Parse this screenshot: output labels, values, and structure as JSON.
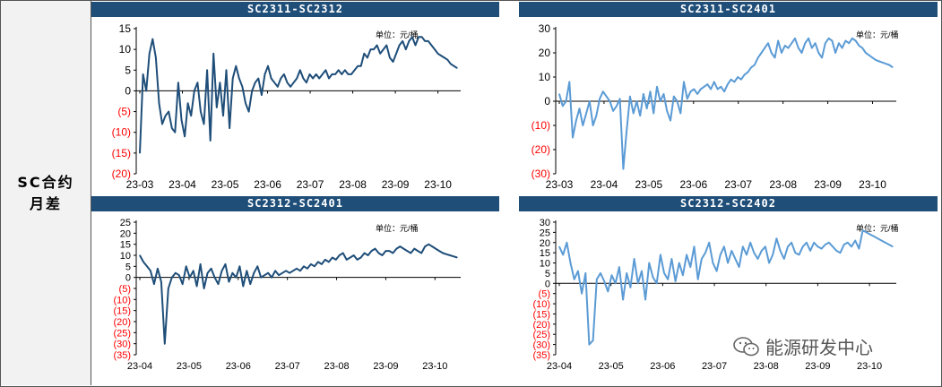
{
  "sidebar": {
    "line1": "SC合约",
    "line2": "月差"
  },
  "watermark": {
    "text": "能源研发中心",
    "icon": "wechat-icon"
  },
  "colors": {
    "header": "#1f4e79",
    "dark_series": "#1f4e79",
    "light_series": "#5b9bd5",
    "negative_tick": "#ff0000"
  },
  "chart_data": [
    {
      "type": "line",
      "title": "SC2311-SC2312",
      "unit_label": "单位：元/桶",
      "color": "#1f4e79",
      "x_ticks": [
        "23-03",
        "23-04",
        "23-05",
        "23-06",
        "23-07",
        "23-08",
        "23-09",
        "23-10"
      ],
      "y_ticks": [
        15,
        10,
        5,
        0,
        -5,
        -10,
        -15,
        -20
      ],
      "y_tick_labels": [
        "15",
        "10",
        "5",
        "0",
        "(5)",
        "(10)",
        "(15)",
        "(20)"
      ],
      "ylim": [
        -20,
        15
      ],
      "x_index": [
        0,
        1,
        2,
        3,
        4,
        5,
        6,
        7,
        8,
        9,
        10,
        11,
        12,
        13,
        14,
        15,
        16,
        17,
        18,
        19,
        20,
        21,
        22,
        23,
        24,
        25,
        26,
        27,
        28,
        29,
        30,
        31,
        32,
        33,
        34,
        35,
        36,
        37,
        38,
        39,
        40,
        41,
        42,
        43,
        44,
        45,
        46,
        47,
        48,
        49,
        50,
        51,
        52,
        53,
        54,
        55,
        56,
        57,
        58,
        59,
        60,
        61,
        62,
        63,
        64,
        65,
        66,
        67,
        68,
        69,
        70,
        71,
        72,
        73,
        74,
        75,
        76,
        77,
        78,
        79,
        80,
        81,
        82,
        83,
        84,
        85,
        86,
        87,
        88,
        89,
        90,
        91,
        92,
        93,
        94,
        95,
        96,
        97,
        98,
        99
      ],
      "values": [
        -15,
        4,
        0,
        9,
        12.5,
        8,
        -3,
        -8,
        -6,
        -5,
        -9,
        -10,
        2,
        -7,
        -11,
        -3,
        -6,
        0,
        2,
        -5,
        -8,
        5,
        -12,
        9,
        -4,
        2,
        -6,
        5,
        -9,
        3,
        6,
        3,
        1,
        -3,
        -5,
        0,
        2,
        3,
        -1,
        4,
        6,
        3,
        2,
        1,
        3,
        4,
        2,
        1,
        2,
        3,
        5,
        3,
        2,
        4,
        3,
        4,
        3,
        4,
        5,
        3,
        4,
        4,
        5,
        4,
        5,
        4,
        4,
        5,
        6,
        6,
        9,
        8,
        10,
        10,
        11,
        9,
        10,
        11,
        8,
        7,
        9,
        11,
        12,
        10,
        12,
        13,
        11,
        13,
        13,
        12,
        12,
        11,
        10,
        9,
        8.5,
        8,
        7.5,
        6.5,
        6,
        5.5
      ]
    },
    {
      "type": "line",
      "title": "SC2311-SC2401",
      "unit_label": "单位：元/桶",
      "color": "#5b9bd5",
      "x_ticks": [
        "23-03",
        "23-04",
        "23-05",
        "23-06",
        "23-07",
        "23-08",
        "23-09",
        "23-10"
      ],
      "y_ticks": [
        30,
        20,
        10,
        0,
        -10,
        -20,
        -30
      ],
      "y_tick_labels": [
        "30",
        "20",
        "10",
        "0",
        "(10)",
        "(20)",
        "(30)"
      ],
      "ylim": [
        -30,
        30
      ],
      "x_index": [
        0,
        1,
        2,
        3,
        4,
        5,
        6,
        7,
        8,
        9,
        10,
        11,
        12,
        13,
        14,
        15,
        16,
        17,
        18,
        19,
        20,
        21,
        22,
        23,
        24,
        25,
        26,
        27,
        28,
        29,
        30,
        31,
        32,
        33,
        34,
        35,
        36,
        37,
        38,
        39,
        40,
        41,
        42,
        43,
        44,
        45,
        46,
        47,
        48,
        49,
        50,
        51,
        52,
        53,
        54,
        55,
        56,
        57,
        58,
        59,
        60,
        61,
        62,
        63,
        64,
        65,
        66,
        67,
        68,
        69,
        70,
        71,
        72,
        73,
        74,
        75,
        76,
        77,
        78,
        79,
        80,
        81,
        82,
        83,
        84,
        85,
        86,
        87,
        88,
        89,
        90,
        91,
        92,
        93,
        94,
        95,
        96,
        97,
        98,
        99
      ],
      "values": [
        3,
        -2,
        0,
        8,
        -15,
        -8,
        -3,
        -10,
        -5,
        0,
        -10,
        -6,
        1,
        4,
        2,
        0,
        -4,
        -2,
        1,
        -28,
        -12,
        2,
        -5,
        0,
        -6,
        3,
        -3,
        4,
        -5,
        6,
        0,
        3,
        -4,
        -8,
        2,
        0,
        -5,
        8,
        1,
        4,
        5,
        3,
        5,
        6,
        7,
        5,
        8,
        5,
        6,
        4,
        7,
        9,
        8,
        10,
        9,
        11,
        12,
        14,
        15,
        18,
        20,
        22,
        24,
        20,
        18,
        25,
        20,
        23,
        22,
        24,
        26,
        22,
        20,
        24,
        26,
        22,
        24,
        20,
        18,
        24,
        26,
        25,
        20,
        24,
        22,
        25,
        24,
        26,
        25,
        23,
        22,
        20,
        19,
        18,
        17,
        16.5,
        16,
        15.5,
        15,
        14
      ]
    },
    {
      "type": "line",
      "title": "SC2312-SC2401",
      "unit_label": "单位：元/桶",
      "color": "#1f4e79",
      "x_ticks": [
        "23-04",
        "23-05",
        "23-06",
        "23-07",
        "23-08",
        "23-09",
        "23-10"
      ],
      "y_ticks": [
        25,
        20,
        15,
        10,
        5,
        0,
        -5,
        -10,
        -15,
        -20,
        -25,
        -30,
        -35
      ],
      "y_tick_labels": [
        "25",
        "20",
        "15",
        "10",
        "5",
        "0",
        "(5)",
        "(10)",
        "(15)",
        "(20)",
        "(25)",
        "(30)",
        "(35)"
      ],
      "ylim": [
        -35,
        25
      ],
      "x_index": [
        0,
        1,
        2,
        3,
        4,
        5,
        6,
        7,
        8,
        9,
        10,
        11,
        12,
        13,
        14,
        15,
        16,
        17,
        18,
        19,
        20,
        21,
        22,
        23,
        24,
        25,
        26,
        27,
        28,
        29,
        30,
        31,
        32,
        33,
        34,
        35,
        36,
        37,
        38,
        39,
        40,
        41,
        42,
        43,
        44,
        45,
        46,
        47,
        48,
        49,
        50,
        51,
        52,
        53,
        54,
        55,
        56,
        57,
        58,
        59,
        60,
        61,
        62,
        63,
        64,
        65,
        66,
        67,
        68,
        69,
        70,
        71,
        72,
        73,
        74,
        75,
        76,
        77,
        78,
        79,
        80,
        81,
        82,
        83,
        84,
        85,
        86,
        87,
        88,
        89
      ],
      "values": [
        10,
        7,
        5,
        3,
        -3,
        4,
        -2,
        -30,
        -5,
        0,
        2,
        1,
        -3,
        5,
        0,
        3,
        -4,
        6,
        -5,
        2,
        4,
        0,
        -3,
        3,
        6,
        -2,
        2,
        0,
        5,
        -4,
        3,
        -3,
        2,
        5,
        0,
        1,
        2,
        0,
        3,
        1,
        2,
        3,
        2,
        3,
        4,
        3,
        5,
        4,
        6,
        5,
        7,
        6,
        8,
        7,
        9,
        8,
        10,
        11,
        8,
        9,
        10,
        8,
        9,
        11,
        10,
        12,
        13,
        11,
        10,
        12,
        12,
        11,
        13,
        14,
        13,
        12,
        11,
        13,
        12,
        11,
        14,
        15,
        14,
        13,
        12,
        11,
        10.5,
        10,
        9.5,
        9
      ]
    },
    {
      "type": "line",
      "title": "SC2312-SC2402",
      "unit_label": "单位：元/桶",
      "color": "#5b9bd5",
      "x_ticks": [
        "23-04",
        "23-05",
        "23-06",
        "23-07",
        "23-08",
        "23-09",
        "23-10"
      ],
      "y_ticks": [
        30,
        25,
        20,
        15,
        10,
        5,
        0,
        -5,
        -10,
        -15,
        -20,
        -25,
        -30,
        -35
      ],
      "y_tick_labels": [
        "30",
        "25",
        "20",
        "15",
        "10",
        "5",
        "0",
        "(5)",
        "(10)",
        "(15)",
        "(20)",
        "(25)",
        "(30)",
        "(35)"
      ],
      "ylim": [
        -35,
        30
      ],
      "x_index": [
        0,
        1,
        2,
        3,
        4,
        5,
        6,
        7,
        8,
        9,
        10,
        11,
        12,
        13,
        14,
        15,
        16,
        17,
        18,
        19,
        20,
        21,
        22,
        23,
        24,
        25,
        26,
        27,
        28,
        29,
        30,
        31,
        32,
        33,
        34,
        35,
        36,
        37,
        38,
        39,
        40,
        41,
        42,
        43,
        44,
        45,
        46,
        47,
        48,
        49,
        50,
        51,
        52,
        53,
        54,
        55,
        56,
        57,
        58,
        59,
        60,
        61,
        62,
        63,
        64,
        65,
        66,
        67,
        68,
        69,
        70,
        71,
        72,
        73,
        74,
        75,
        76,
        77,
        78,
        79,
        80,
        81,
        82,
        83,
        84,
        85,
        86,
        87,
        88,
        89
      ],
      "values": [
        18,
        14,
        20,
        10,
        2,
        6,
        -5,
        5,
        -30,
        -28,
        2,
        5,
        1,
        -4,
        4,
        0,
        8,
        -8,
        5,
        -2,
        12,
        0,
        6,
        -8,
        10,
        3,
        0,
        14,
        5,
        2,
        12,
        1,
        10,
        4,
        14,
        8,
        18,
        2,
        12,
        15,
        20,
        10,
        6,
        14,
        18,
        10,
        16,
        12,
        8,
        18,
        14,
        20,
        15,
        12,
        16,
        18,
        10,
        14,
        22,
        16,
        12,
        18,
        20,
        15,
        14,
        18,
        20,
        16,
        20,
        18,
        17,
        19,
        20,
        18,
        16,
        15,
        19,
        20,
        18,
        21,
        17,
        26,
        25,
        24,
        23,
        22,
        21,
        20,
        19,
        18
      ]
    }
  ]
}
